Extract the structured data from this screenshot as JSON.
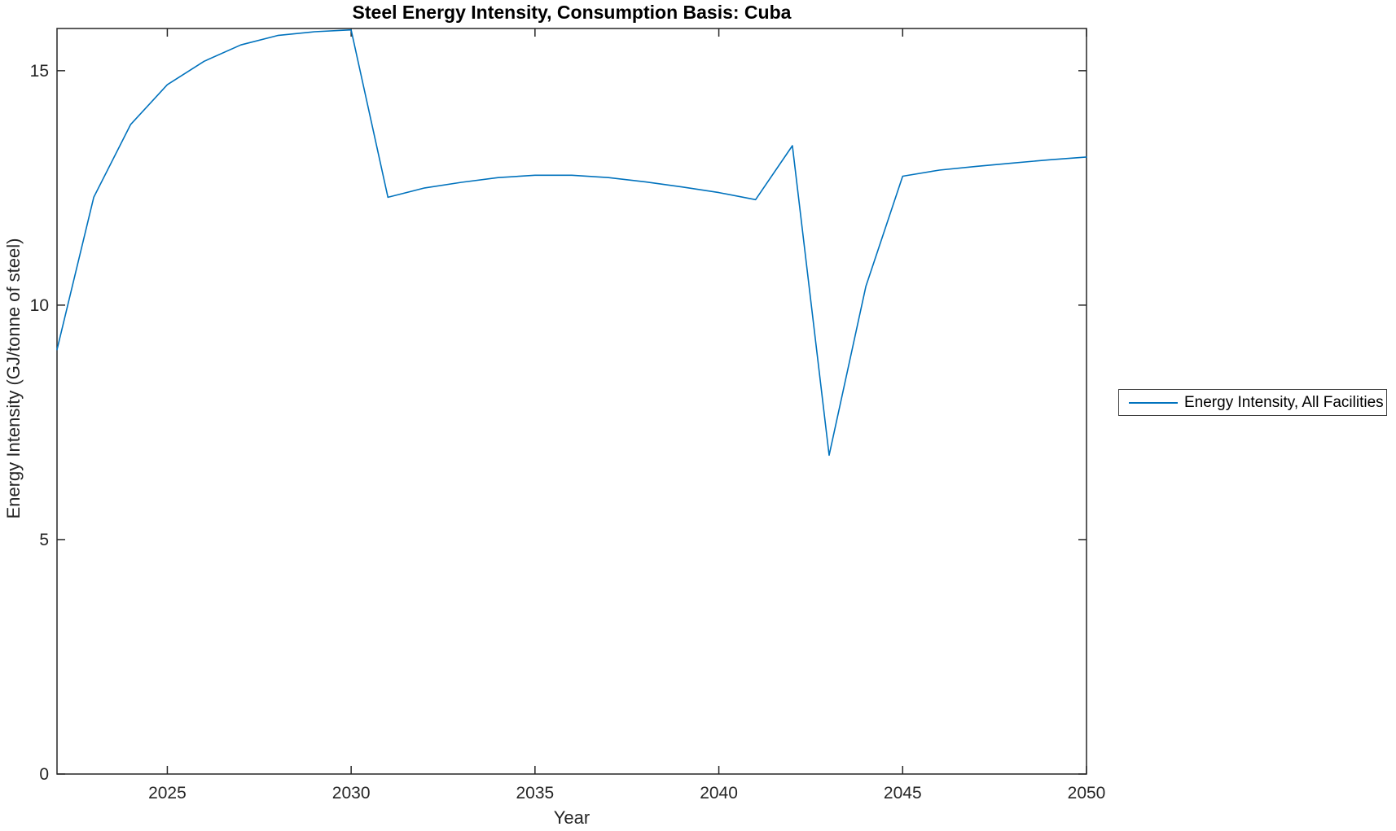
{
  "figure": {
    "title": "Steel Energy Intensity, Consumption Basis: Cuba",
    "xlabel": "Year",
    "ylabel": "Energy Intensity (GJ/tonne of steel)",
    "legend": {
      "entries": [
        {
          "label": "Energy Intensity, All Facilities",
          "color": "#0072BD"
        }
      ],
      "position": "outside-right"
    }
  },
  "colors": {
    "axis": "#262626",
    "tick_text": "#262626",
    "title_text": "#000000",
    "line": "#0072BD",
    "background": "#ffffff"
  },
  "chart_data": {
    "type": "line",
    "title": "Steel Energy Intensity, Consumption Basis: Cuba",
    "xlabel": "Year",
    "ylabel": "Energy Intensity (GJ/tonne of steel)",
    "grid": false,
    "legend_position": "outside-right",
    "xlim": [
      2022,
      2050
    ],
    "ylim": [
      0,
      15.9
    ],
    "xticks": [
      2025,
      2030,
      2035,
      2040,
      2045,
      2050
    ],
    "yticks": [
      0,
      5,
      10,
      15
    ],
    "x": [
      2022,
      2023,
      2024,
      2025,
      2026,
      2027,
      2028,
      2029,
      2030,
      2031,
      2032,
      2033,
      2034,
      2035,
      2036,
      2037,
      2038,
      2039,
      2040,
      2041,
      2042,
      2043,
      2044,
      2045,
      2046,
      2047,
      2048,
      2049,
      2050
    ],
    "series": [
      {
        "name": "Energy Intensity, All Facilities",
        "color": "#0072BD",
        "values": [
          9.05,
          12.3,
          13.85,
          14.7,
          15.2,
          15.55,
          15.75,
          15.83,
          15.87,
          12.3,
          12.5,
          12.62,
          12.72,
          12.77,
          12.77,
          12.72,
          12.63,
          12.52,
          12.4,
          12.25,
          13.4,
          6.8,
          10.4,
          12.75,
          12.88,
          12.96,
          13.03,
          13.1,
          13.16
        ]
      }
    ]
  }
}
